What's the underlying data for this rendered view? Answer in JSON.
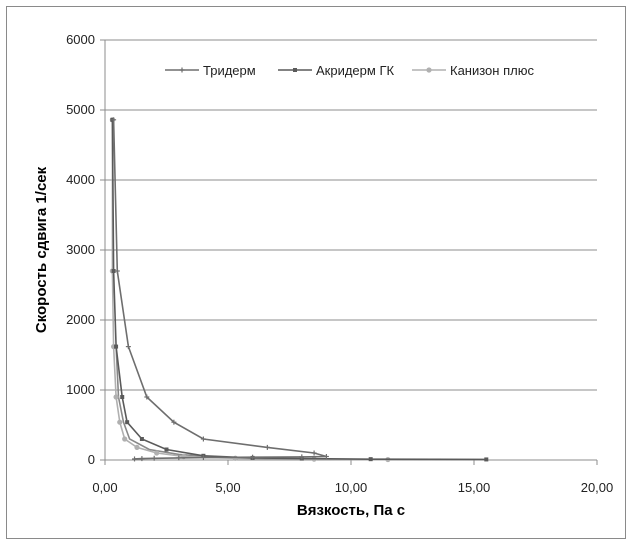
{
  "chart_data": {
    "type": "scatter",
    "xlabel": "Вязкость, Па с",
    "ylabel": "Скорость сдвига 1/сек",
    "xlim": [
      0,
      20
    ],
    "ylim": [
      0,
      6000
    ],
    "xticks": [
      "0,00",
      "5,00",
      "10,00",
      "15,00",
      "20,00"
    ],
    "yticks": [
      "0",
      "1000",
      "2000",
      "3000",
      "4000",
      "5000",
      "6000"
    ],
    "grid": true,
    "legend_position": "top",
    "series": [
      {
        "name": "Тридерм",
        "color": "#6e6e6e",
        "marker": "+",
        "points": [
          [
            0.35,
            4860
          ],
          [
            0.5,
            2700
          ],
          [
            0.95,
            1620
          ],
          [
            1.7,
            900
          ],
          [
            2.8,
            540
          ],
          [
            4.0,
            300
          ],
          [
            6.6,
            180
          ],
          [
            8.5,
            100
          ],
          [
            9.0,
            50
          ],
          [
            8.0,
            45
          ],
          [
            6.0,
            40
          ],
          [
            4.0,
            35
          ],
          [
            3.0,
            30
          ],
          [
            2.0,
            25
          ],
          [
            1.5,
            20
          ],
          [
            1.2,
            15
          ]
        ]
      },
      {
        "name": "Акридерм ГК",
        "color": "#5a5a5a",
        "marker": "square",
        "points": [
          [
            0.3,
            4860
          ],
          [
            0.35,
            2700
          ],
          [
            0.45,
            1620
          ],
          [
            0.7,
            900
          ],
          [
            0.9,
            540
          ],
          [
            1.5,
            300
          ],
          [
            2.5,
            150
          ],
          [
            4.0,
            60
          ],
          [
            6.0,
            30
          ],
          [
            8.0,
            20
          ],
          [
            10.8,
            12
          ],
          [
            15.5,
            8
          ]
        ]
      },
      {
        "name": "Канизон плюс",
        "color": "#b0b0b0",
        "marker": "circle",
        "points": [
          [
            0.3,
            4860
          ],
          [
            0.3,
            2700
          ],
          [
            0.35,
            1620
          ],
          [
            0.45,
            900
          ],
          [
            0.6,
            540
          ],
          [
            0.8,
            300
          ],
          [
            1.3,
            180
          ],
          [
            2.1,
            100
          ],
          [
            3.2,
            50
          ],
          [
            5.3,
            25
          ],
          [
            8.5,
            12
          ],
          [
            11.5,
            6
          ]
        ]
      }
    ],
    "extra_lines": [
      {
        "color": "#888888",
        "points": [
          [
            0.45,
            1620
          ],
          [
            0.55,
            900
          ],
          [
            0.75,
            540
          ],
          [
            1.0,
            300
          ],
          [
            1.8,
            150
          ],
          [
            3.0,
            80
          ],
          [
            4.2,
            50
          ]
        ]
      }
    ]
  }
}
